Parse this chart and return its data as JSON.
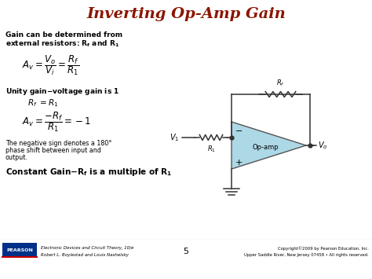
{
  "title": "Inverting Op-Amp Gain",
  "title_color": "#8B1500",
  "bg_color": "#FFFFFF",
  "opamp_fill": "#ADD8E6",
  "slide_number": "5",
  "footer_left1": "Electronic Devices and Circuit Theory, 10/e",
  "footer_left2": "Robert L. Boylestad and Louis Nashelsky",
  "footer_right1": "Copyright©2009 by Pearson Education, Inc.",
  "footer_right2": "Upper Saddle River, New Jersey 07458 • All rights reserved.",
  "pearson_text": "PEARSON",
  "pearson_bg": "#003087"
}
